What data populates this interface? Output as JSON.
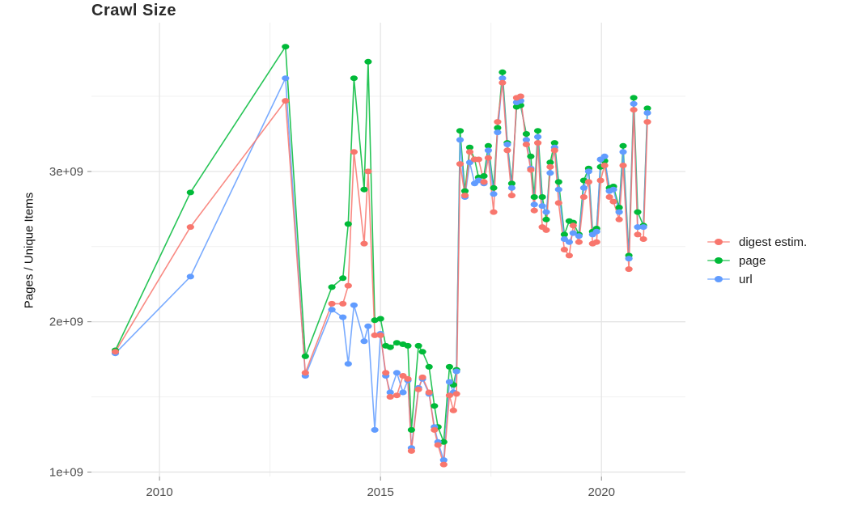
{
  "page": {
    "background": "#ffffff"
  },
  "chart_data": {
    "type": "line",
    "title": "Crawl Size",
    "xlabel": "",
    "ylabel": "Pages / Unique Items",
    "unit": "1e+09 (billions)",
    "legend_position": "right",
    "grid": "on",
    "xlim": [
      2008.46,
      2021.9
    ],
    "ylim_e9": [
      0.97,
      3.99
    ],
    "x_ticks": [
      {
        "value": 2010,
        "label": "2010"
      },
      {
        "value": 2015,
        "label": "2015"
      },
      {
        "value": 2020,
        "label": "2020"
      }
    ],
    "x_minor_ticks": [
      2012.5,
      2017.5
    ],
    "y_ticks": [
      {
        "value": 1,
        "label": "1e+09"
      },
      {
        "value": 2,
        "label": "2e+09"
      },
      {
        "value": 3,
        "label": "3e+09"
      }
    ],
    "y_minor_ticks": [
      1.5,
      2.5,
      3.5
    ],
    "x": [
      2009.0,
      2010.7,
      2012.85,
      2013.3,
      2013.9,
      2014.15,
      2014.27,
      2014.4,
      2014.63,
      2014.72,
      2014.87,
      2015.0,
      2015.12,
      2015.22,
      2015.37,
      2015.51,
      2015.62,
      2015.7,
      2015.86,
      2015.95,
      2016.1,
      2016.22,
      2016.3,
      2016.43,
      2016.56,
      2016.65,
      2016.72,
      2016.8,
      2016.91,
      2017.02,
      2017.13,
      2017.22,
      2017.34,
      2017.44,
      2017.56,
      2017.65,
      2017.76,
      2017.87,
      2017.97,
      2018.08,
      2018.17,
      2018.3,
      2018.4,
      2018.48,
      2018.56,
      2018.66,
      2018.75,
      2018.84,
      2018.94,
      2019.03,
      2019.16,
      2019.27,
      2019.36,
      2019.49,
      2019.6,
      2019.71,
      2019.8,
      2019.89,
      2019.98,
      2020.07,
      2020.18,
      2020.27,
      2020.4,
      2020.49,
      2020.62,
      2020.73,
      2020.82,
      2020.95,
      2021.04
    ],
    "series": [
      {
        "name": "digest estim.",
        "color": "#F8766D",
        "values_e9": [
          1.8,
          2.63,
          3.47,
          1.66,
          2.12,
          2.12,
          2.24,
          3.13,
          2.52,
          3.0,
          1.91,
          1.91,
          1.66,
          1.5,
          1.51,
          1.64,
          1.62,
          1.14,
          1.55,
          1.63,
          1.53,
          1.28,
          1.18,
          1.05,
          1.51,
          1.41,
          1.52,
          3.05,
          2.84,
          3.13,
          3.08,
          3.08,
          2.93,
          3.09,
          2.73,
          3.33,
          3.59,
          3.14,
          2.84,
          3.49,
          3.5,
          3.18,
          3.01,
          2.74,
          3.19,
          2.63,
          2.61,
          3.03,
          3.14,
          2.79,
          2.48,
          2.44,
          2.64,
          2.53,
          2.83,
          2.93,
          2.52,
          2.53,
          2.94,
          3.04,
          2.83,
          2.8,
          2.68,
          3.04,
          2.35,
          3.41,
          2.58,
          2.55,
          3.33
        ]
      },
      {
        "name": "page",
        "color": "#00BA38",
        "values_e9": [
          1.81,
          2.86,
          3.83,
          1.77,
          2.23,
          2.29,
          2.65,
          3.62,
          2.88,
          3.73,
          2.01,
          2.02,
          1.84,
          1.83,
          1.86,
          1.85,
          1.84,
          1.28,
          1.84,
          1.8,
          1.7,
          1.44,
          1.3,
          1.2,
          1.7,
          1.58,
          1.68,
          3.27,
          2.87,
          3.16,
          3.08,
          2.96,
          2.97,
          3.17,
          2.89,
          3.29,
          3.66,
          3.19,
          2.92,
          3.43,
          3.44,
          3.25,
          3.1,
          2.83,
          3.27,
          2.83,
          2.68,
          3.06,
          3.19,
          2.93,
          2.58,
          2.67,
          2.66,
          2.58,
          2.94,
          3.02,
          2.6,
          2.62,
          3.03,
          3.07,
          2.89,
          2.9,
          2.76,
          3.17,
          2.44,
          3.49,
          2.73,
          2.64,
          3.42
        ]
      },
      {
        "name": "url",
        "color": "#619CFF",
        "values_e9": [
          1.79,
          2.3,
          3.62,
          1.64,
          2.08,
          2.03,
          1.72,
          2.11,
          1.87,
          1.97,
          1.28,
          1.92,
          1.64,
          1.53,
          1.66,
          1.53,
          1.61,
          1.16,
          1.56,
          1.62,
          1.52,
          1.3,
          1.2,
          1.08,
          1.6,
          1.53,
          1.67,
          3.21,
          2.83,
          3.06,
          2.92,
          2.94,
          2.92,
          3.14,
          2.85,
          3.26,
          3.62,
          3.18,
          2.89,
          3.46,
          3.47,
          3.21,
          3.02,
          2.78,
          3.23,
          2.77,
          2.73,
          2.99,
          3.16,
          2.88,
          2.55,
          2.53,
          2.59,
          2.57,
          2.89,
          3.0,
          2.58,
          2.6,
          3.08,
          3.1,
          2.87,
          2.88,
          2.73,
          3.13,
          2.42,
          3.45,
          2.63,
          2.63,
          3.39
        ]
      }
    ],
    "style": {
      "grid_major_color": "#e5e5e5",
      "grid_minor_color": "#f0f0f0",
      "tick_color": "#8c8c8c",
      "tick_label_color": "#4d4d4d",
      "title_color": "#2b2b2b"
    }
  }
}
